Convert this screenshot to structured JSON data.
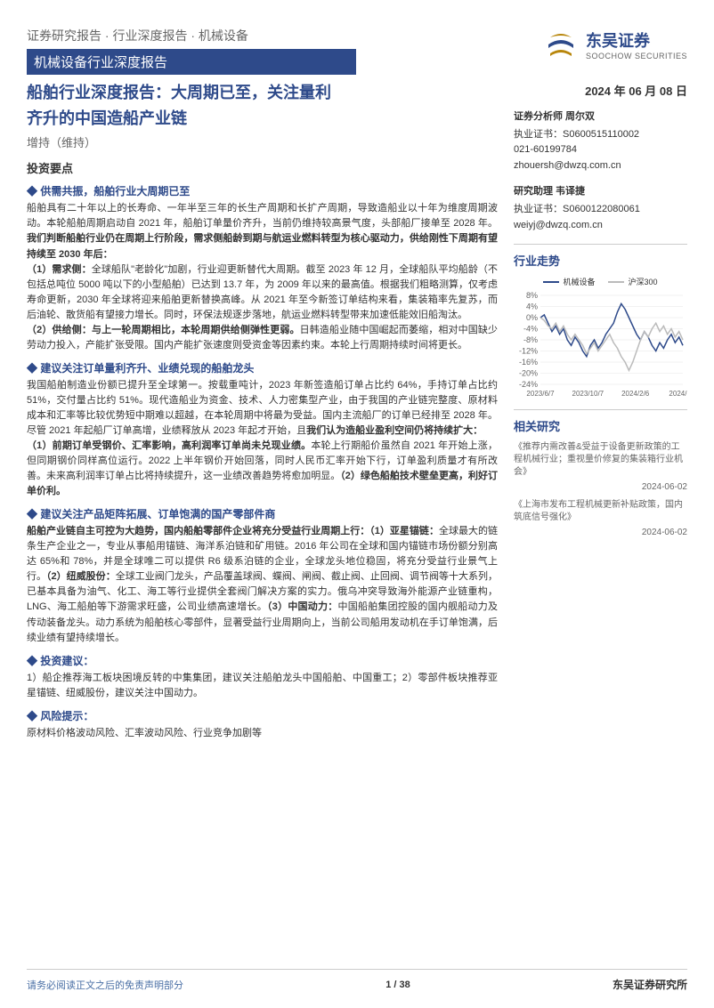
{
  "header": {
    "breadcrumb": "证券研究报告 · 行业深度报告 · 机械设备",
    "report_type": "机械设备行业深度报告",
    "logo_cn": "东吴证券",
    "logo_en": "SOOCHOW SECURITIES"
  },
  "title_line1": "船舶行业深度报告：大周期已至，关注量利",
  "title_line2": "齐升的中国造船产业链",
  "rating": "增持（维持）",
  "date": "2024 年 06 月 08 日",
  "left": {
    "section_title": "投资要点",
    "blocks": [
      {
        "header": "供需共振，船舶行业大周期已至",
        "paras": [
          "船舶具有二十年以上的长寿命、一年半至三年的长生产周期和长扩产周期，导致造船业以十年为维度周期波动。本轮船舶周期启动自 2021 年，船舶订单量价齐升，当前仍维持较高景气度，头部船厂接单至 2028 年。<b>我们判断船舶行业仍在周期上行阶段，需求侧船龄到期与航运业燃料转型为核心驱动力，供给刚性下周期有望持续至 2030 年后：</b>",
          "<b>（1）需求侧：</b>全球船队\"老龄化\"加剧，行业迎更新替代大周期。截至 2023 年 12 月，全球船队平均船龄（不包括总吨位 5000 吨以下的小型船舶）已达到 13.7 年，为 2009 年以来的最高值。根据我们粗略测算，仅考虑寿命更新，2030 年全球将迎来船舶更新替换高峰。从 2021 年至今新签订单结构来看，集装箱率先复苏，而后油轮、散货船有望接力增长。同时，环保法规逐步落地，航运业燃料转型带来加速低能效旧船淘汰。",
          "<b>（2）供给侧：与上一轮周期相比，本轮周期供给侧弹性更弱。</b>日韩造船业随中国崛起而萎缩，相对中国缺少劳动力投入，产能扩张受限。国内产能扩张速度则受资金等因素约束。本轮上行周期持续时间将更长。"
        ]
      },
      {
        "header": "建议关注订单量利齐升、业绩兑现的船舶龙头",
        "paras": [
          "我国船舶制造业份额已提升至全球第一。按载重吨计，2023 年新签造船订单占比约 64%，手持订单占比约 51%，交付量占比约 51%。现代造船业为资金、技术、人力密集型产业，由于我国的产业链完整度、原材料成本和汇率等比较优势短中期难以超越，在本轮周期中将最为受益。国内主流船厂的订单已经排至 2028 年。尽管 2021 年起船厂订单高增，业绩释放从 2023 年起才开始，且<b>我们认为造船业盈利空间仍将持续扩大：</b>",
          "<b>（1）前期订单受钢价、汇率影响，高利润率订单尚未兑现业绩。</b>本轮上行期船价虽然自 2021 年开始上涨，但同期钢价同样高位运行。2022 上半年钢价开始回落，同时人民币汇率开始下行，订单盈利质量才有所改善。未来高利润率订单占比将持续提升，这一业绩改善趋势将愈加明显。<b>（2）绿色船舶技术壁垒更高，利好订单价利。</b>"
        ]
      },
      {
        "header": "建议关注产品矩阵拓展、订单饱满的国产零部件商",
        "paras": [
          "<b>船舶产业链自主可控为大趋势，国内船舶零部件企业将充分受益行业周期上行：（1）亚星锚链：</b>全球最大的链条生产企业之一，专业从事船用锚链、海洋系泊链和矿用链。2016 年公司在全球和国内锚链市场份额分别高达 65%和 78%，并是全球唯二可以提供 R6 级系泊链的企业，全球龙头地位稳固，将充分受益行业景气上行。<b>（2）纽威股份：</b>全球工业阀门龙头，产品覆盖球阀、蝶阀、闸阀、截止阀、止回阀、调节阀等十大系列，已基本具备为油气、化工、海工等行业提供全套阀门解决方案的实力。俄乌冲突导致海外能源产业链重构，LNG、海工船舶等下游需求旺盛，公司业绩高速增长。<b>（3）中国动力：</b>中国船舶集团控股的国内舰船动力及传动装备龙头。动力系统为船舶核心零部件，显著受益行业周期向上，当前公司船用发动机在手订单饱满，后续业绩有望持续增长。"
        ]
      },
      {
        "header": "投资建议：",
        "paras": [
          "1）船企推荐海工板块困境反转的中集集团，建议关注船舶龙头中国船舶、中国重工；2）零部件板块推荐亚星锚链、纽威股份，建议关注中国动力。"
        ]
      },
      {
        "header": "风险提示：",
        "paras": [
          "原材料价格波动风险、汇率波动风险、行业竞争加剧等"
        ]
      }
    ]
  },
  "right": {
    "analysts": [
      {
        "role": "证券分析师  周尔双",
        "lines": [
          "执业证书：S0600515110002",
          "021-60199784",
          "zhouersh@dwzq.com.cn"
        ]
      },
      {
        "role": "研究助理  韦译捷",
        "lines": [
          "执业证书：S0600122080061",
          "weiyj@dwzq.com.cn"
        ]
      }
    ],
    "trend_title": "行业走势",
    "research_title": "相关研究",
    "research": [
      {
        "title": "《推荐内需改善&受益于设备更新政策的工程机械行业；重视量价修复的集装箱行业机会》",
        "date": "2024-06-02"
      },
      {
        "title": "《上海市发布工程机械更新补贴政策，国内筑底信号强化》",
        "date": "2024-06-02"
      }
    ]
  },
  "chart": {
    "type": "line",
    "width": 195,
    "height": 140,
    "background": "#ffffff",
    "grid_color": "#e5e5e5",
    "text_color": "#666666",
    "font_size": 9,
    "y_min": -24,
    "y_max": 8,
    "y_ticks": [
      -24,
      -20,
      -16,
      -12,
      -8,
      -4,
      0,
      4,
      8
    ],
    "y_tick_labels": [
      "-24%",
      "-20%",
      "-16%",
      "-12%",
      "-8%",
      "-4%",
      "0%",
      "4%",
      "8%"
    ],
    "x_labels": [
      "2023/6/7",
      "2023/10/7",
      "2024/2/6",
      "2024/6/7"
    ],
    "series": [
      {
        "name": "机械设备",
        "color": "#2e4a8a",
        "width": 1.5,
        "data": [
          0,
          1,
          -2,
          -5,
          -3,
          -6,
          -4,
          -8,
          -10,
          -7,
          -9,
          -12,
          -14,
          -10,
          -8,
          -11,
          -9,
          -6,
          -4,
          -2,
          2,
          5,
          3,
          0,
          -3,
          -6,
          -8,
          -5,
          -7,
          -10,
          -12,
          -9,
          -11,
          -8,
          -6,
          -9,
          -7,
          -10
        ]
      },
      {
        "name": "沪深300",
        "color": "#bbbbbb",
        "width": 1.5,
        "data": [
          0,
          -1,
          -3,
          -4,
          -2,
          -5,
          -3,
          -6,
          -8,
          -6,
          -8,
          -10,
          -13,
          -11,
          -9,
          -12,
          -10,
          -8,
          -6,
          -9,
          -11,
          -14,
          -16,
          -19,
          -16,
          -12,
          -8,
          -5,
          -7,
          -4,
          -2,
          -5,
          -3,
          -6,
          -4,
          -7,
          -5,
          -8
        ]
      }
    ]
  },
  "footer": {
    "disclaimer": "请务必阅读正文之后的免责声明部分",
    "page": "1 / 38",
    "org": "东吴证券研究所"
  },
  "colors": {
    "brand_blue": "#2e4a8a",
    "grey_text": "#666666",
    "light_grey": "#bbbbbb",
    "border": "#cccccc"
  }
}
